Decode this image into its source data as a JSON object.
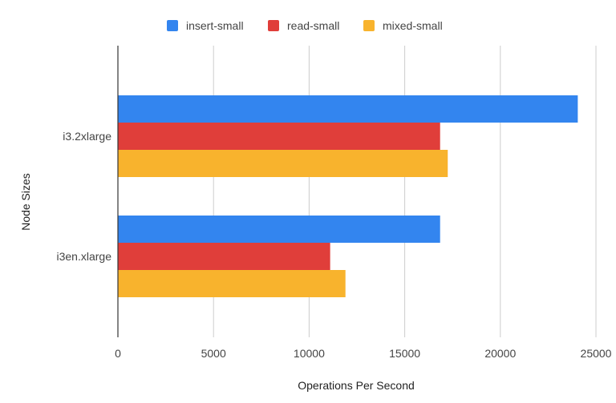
{
  "chart_data": {
    "type": "bar",
    "orientation": "horizontal",
    "title": "",
    "xlabel": "Operations Per Second",
    "ylabel": "Node Sizes",
    "xlim": [
      0,
      25000
    ],
    "x_ticks": [
      0,
      5000,
      10000,
      15000,
      20000,
      25000
    ],
    "grid": "vertical",
    "legend_position": "top",
    "categories": [
      "i3.2xlarge",
      "i3en.xlarge"
    ],
    "series": [
      {
        "name": "insert-small",
        "color": "#3385ef",
        "values": [
          24050,
          16850
        ]
      },
      {
        "name": "read-small",
        "color": "#e03e3a",
        "values": [
          16850,
          11100
        ]
      },
      {
        "name": "mixed-small",
        "color": "#f8b32d",
        "values": [
          17250,
          11900
        ]
      }
    ]
  }
}
